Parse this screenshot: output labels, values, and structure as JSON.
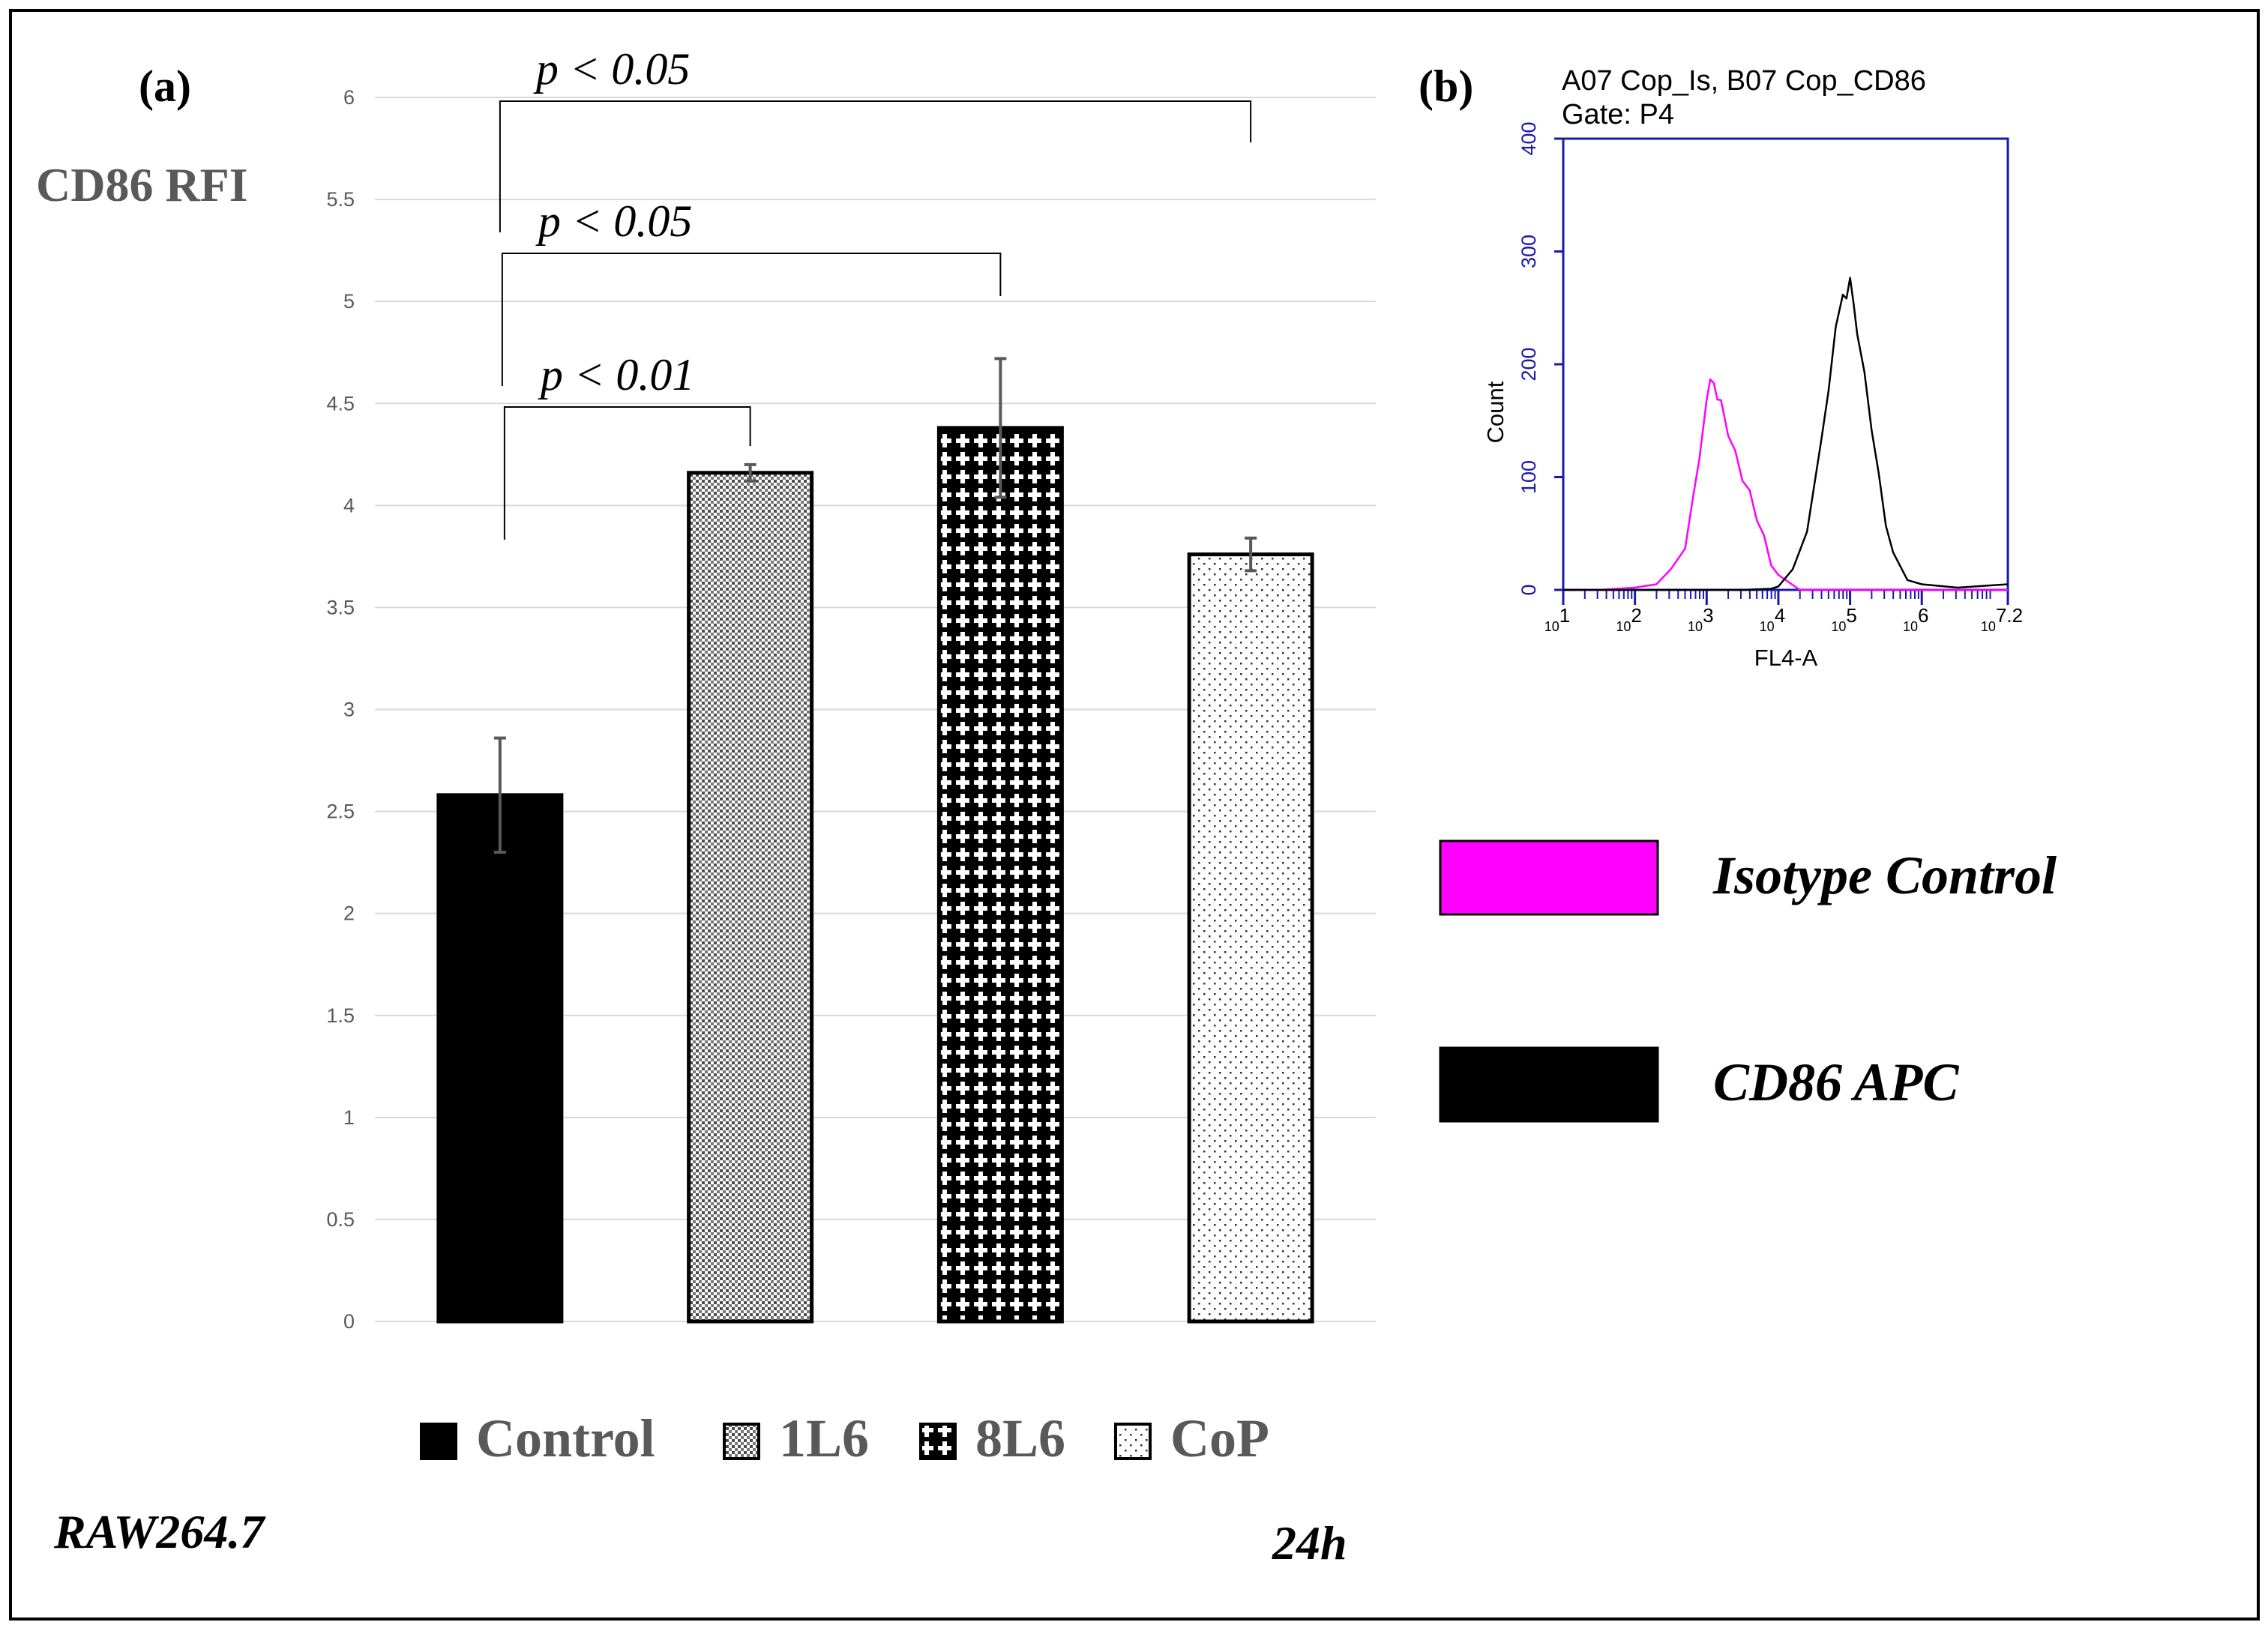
{
  "panel_a": {
    "label": "(a)",
    "ylabel": "CD86 RFI",
    "cell_line": "RAW264.7",
    "time": "24h"
  },
  "panel_b": {
    "label": "(b)",
    "title_line1": "A07 Cop_Is, B07 Cop_CD86",
    "title_line2": "Gate: P4",
    "ylabel": "Count",
    "xlabel": "FL4-A",
    "legend": [
      {
        "label": "Isotype Control",
        "color": "#ff00ff"
      },
      {
        "label": "CD86 APC",
        "color": "#000000"
      }
    ]
  },
  "chart_data": [
    {
      "type": "bar",
      "panel": "(a)",
      "title": "",
      "xlabel": "",
      "ylabel": "CD86 RFI",
      "ylim": [
        0,
        6
      ],
      "yticks": [
        "0",
        "0.5",
        "1",
        "1.5",
        "2",
        "2.5",
        "3",
        "3.5",
        "4",
        "4.5",
        "5",
        "5.5",
        "6"
      ],
      "grid": true,
      "legend_position": "bottom",
      "categories": [
        "Control",
        "1L6",
        "8L6",
        "CoP"
      ],
      "values": [
        2.58,
        4.16,
        4.38,
        3.76
      ],
      "errors": [
        0.28,
        0.04,
        0.34,
        0.08
      ],
      "patterns": [
        "solid-black",
        "fine-dots",
        "black-crosses",
        "sparse-dots"
      ],
      "significance": [
        {
          "from": "Control",
          "to": "1L6",
          "label": "p < 0.01"
        },
        {
          "from": "Control",
          "to": "8L6",
          "label": "p < 0.05"
        },
        {
          "from": "Control",
          "to": "CoP",
          "label": "p < 0.05"
        }
      ],
      "annotations": [
        "RAW264.7",
        "24h"
      ]
    },
    {
      "type": "line",
      "panel": "(b)",
      "title": "A07 Cop_Is, B07 Cop_CD86",
      "subtitle": "Gate: P4",
      "xlabel": "FL4-A",
      "ylabel": "Count",
      "xscale": "log",
      "xlim": [
        1,
        7.2
      ],
      "xtick_labels": [
        "10^1",
        "10^2",
        "10^3",
        "10^4",
        "10^5",
        "10^6",
        "10^7.2"
      ],
      "ylim": [
        0,
        400
      ],
      "yticks": [
        "0",
        "100",
        "200",
        "300",
        "400"
      ],
      "series": [
        {
          "name": "Isotype Control",
          "color": "#ff00ff",
          "x": [
            1.0,
            1.5,
            2.0,
            2.3,
            2.5,
            2.7,
            2.8,
            2.9,
            3.0,
            3.05,
            3.1,
            3.15,
            3.2,
            3.3,
            3.4,
            3.5,
            3.6,
            3.7,
            3.8,
            3.9,
            4.0,
            4.3,
            5.0,
            6.0,
            7.2
          ],
          "y": [
            0,
            0,
            2,
            5,
            15,
            40,
            75,
            120,
            165,
            190,
            180,
            172,
            165,
            140,
            120,
            100,
            85,
            65,
            45,
            25,
            10,
            0,
            0,
            0,
            0
          ]
        },
        {
          "name": "CD86 APC",
          "color": "#000000",
          "x": [
            1.0,
            3.5,
            3.9,
            4.0,
            4.2,
            4.4,
            4.6,
            4.7,
            4.8,
            4.9,
            4.95,
            5.0,
            5.05,
            5.1,
            5.2,
            5.3,
            5.4,
            5.5,
            5.6,
            5.8,
            6.0,
            6.5,
            7.2
          ],
          "y": [
            0,
            0,
            1,
            3,
            15,
            55,
            130,
            180,
            230,
            265,
            255,
            280,
            250,
            230,
            190,
            145,
            100,
            60,
            30,
            12,
            5,
            2,
            5
          ]
        }
      ]
    }
  ]
}
